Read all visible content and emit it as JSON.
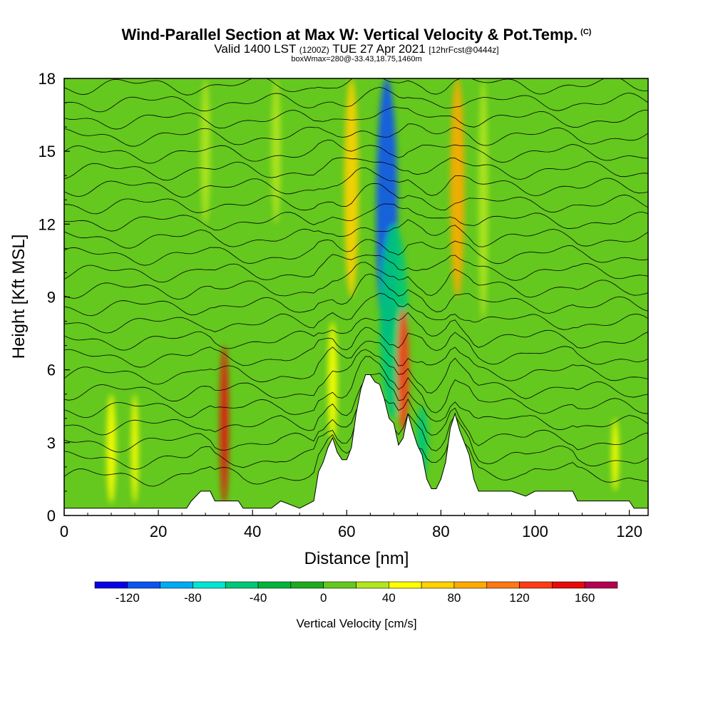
{
  "header": {
    "title": "Wind-Parallel Section at Max W: Vertical Velocity & Pot.Temp.",
    "copyright": "(C)",
    "valid_prefix": "Valid 1400 LST",
    "valid_utc": "(1200Z)",
    "valid_date": "TUE 27 Apr 2021",
    "forecast": "[12hrFcst@0444z]",
    "box_info": "boxWmax=280@-33.43,18.75,1460m"
  },
  "chart_data": {
    "type": "heatmap",
    "title": "Wind-Parallel Section at Max W: Vertical Velocity & Pot.Temp.",
    "xlabel": "Distance [nm]",
    "ylabel": "Height [Kft MSL]",
    "xlim": [
      0,
      124
    ],
    "ylim": [
      0,
      18
    ],
    "x_ticks": [
      "0",
      "20",
      "40",
      "60",
      "80",
      "100",
      "120"
    ],
    "y_ticks": [
      "0",
      "3",
      "6",
      "9",
      "12",
      "15",
      "18"
    ],
    "colorbar": {
      "title": "Vertical Velocity [cm/s]",
      "labels": [
        "-120",
        "-80",
        "-40",
        "0",
        "40",
        "80",
        "120",
        "160"
      ],
      "bounds": [
        -140,
        -120,
        -100,
        -80,
        -60,
        -40,
        -20,
        0,
        20,
        40,
        60,
        80,
        100,
        120,
        140,
        160,
        180
      ],
      "colors": [
        "#0a00e6",
        "#0a55f0",
        "#00aaf5",
        "#00e6d2",
        "#00c878",
        "#00b43c",
        "#1eaa1e",
        "#64c81e",
        "#b4e61e",
        "#ffff00",
        "#ffd200",
        "#ffaa00",
        "#ff7814",
        "#ff3c14",
        "#e60a0a",
        "#b40050"
      ]
    },
    "terrain": [
      [
        0,
        0.3
      ],
      [
        10,
        0.3
      ],
      [
        20,
        0.3
      ],
      [
        26,
        0.3
      ],
      [
        27,
        0.6
      ],
      [
        29,
        1.0
      ],
      [
        31,
        1.0
      ],
      [
        32,
        0.6
      ],
      [
        37,
        0.6
      ],
      [
        38,
        0.3
      ],
      [
        42,
        0.3
      ],
      [
        44,
        0.3
      ],
      [
        46,
        0.6
      ],
      [
        50,
        0.3
      ],
      [
        53,
        0.6
      ],
      [
        54,
        1.8
      ],
      [
        55,
        2.2
      ],
      [
        56,
        2.8
      ],
      [
        57,
        3.2
      ],
      [
        58,
        2.6
      ],
      [
        59,
        2.3
      ],
      [
        60,
        2.3
      ],
      [
        61,
        2.8
      ],
      [
        62,
        4.2
      ],
      [
        63,
        5.2
      ],
      [
        64,
        5.8
      ],
      [
        65,
        5.8
      ],
      [
        66,
        5.5
      ],
      [
        67,
        5.4
      ],
      [
        68,
        4.8
      ],
      [
        69,
        4.0
      ],
      [
        70,
        3.8
      ],
      [
        71,
        2.9
      ],
      [
        72,
        3.2
      ],
      [
        73,
        4.2
      ],
      [
        74,
        3.5
      ],
      [
        75,
        2.9
      ],
      [
        76,
        2.5
      ],
      [
        77,
        1.5
      ],
      [
        78,
        1.1
      ],
      [
        79,
        1.1
      ],
      [
        80,
        1.5
      ],
      [
        81,
        2.2
      ],
      [
        82,
        3.6
      ],
      [
        83,
        4.2
      ],
      [
        84,
        3.5
      ],
      [
        85,
        3.0
      ],
      [
        86,
        2.5
      ],
      [
        87,
        1.5
      ],
      [
        88,
        1.0
      ],
      [
        95,
        1.0
      ],
      [
        98,
        0.8
      ],
      [
        100,
        1.0
      ],
      [
        108,
        1.0
      ],
      [
        109,
        0.6
      ],
      [
        120,
        0.6
      ],
      [
        121,
        0.3
      ],
      [
        124,
        0.3
      ]
    ],
    "features": [
      {
        "x": 34,
        "z": [
          0.5,
          7
        ],
        "w": 1.8,
        "value": 150
      },
      {
        "x": 68.5,
        "z": [
          7,
          18
        ],
        "w": 4.5,
        "value": -110
      },
      {
        "x": 70,
        "z": [
          4,
          12
        ],
        "w": 6,
        "value": -50
      },
      {
        "x": 76,
        "z": [
          1.5,
          4.5
        ],
        "w": 2.5,
        "value": -50
      },
      {
        "x": 72,
        "z": [
          3.5,
          8.5
        ],
        "w": 2.5,
        "value": 120
      },
      {
        "x": 61,
        "z": [
          9,
          18
        ],
        "w": 3,
        "value": 70
      },
      {
        "x": 83.5,
        "z": [
          9,
          18
        ],
        "w": 3,
        "value": 85
      },
      {
        "x": 57,
        "z": [
          3,
          8
        ],
        "w": 2,
        "value": 45
      },
      {
        "x": 10,
        "z": [
          0.5,
          5
        ],
        "w": 2,
        "value": 40
      },
      {
        "x": 15,
        "z": [
          0.5,
          5
        ],
        "w": 1.5,
        "value": 45
      },
      {
        "x": 117,
        "z": [
          1,
          4
        ],
        "w": 1.5,
        "value": 45
      },
      {
        "x": 45,
        "z": [
          12,
          18
        ],
        "w": 2,
        "value": 35
      },
      {
        "x": 30,
        "z": [
          12,
          18
        ],
        "w": 2,
        "value": 30
      },
      {
        "x": 89,
        "z": [
          8,
          18
        ],
        "w": 2,
        "value": 35
      }
    ],
    "isentropes": {
      "count": 26,
      "color": "#000000"
    }
  },
  "colors": {
    "background": "#ffffff",
    "axis": "#000000",
    "terrain": "#ffffff"
  }
}
